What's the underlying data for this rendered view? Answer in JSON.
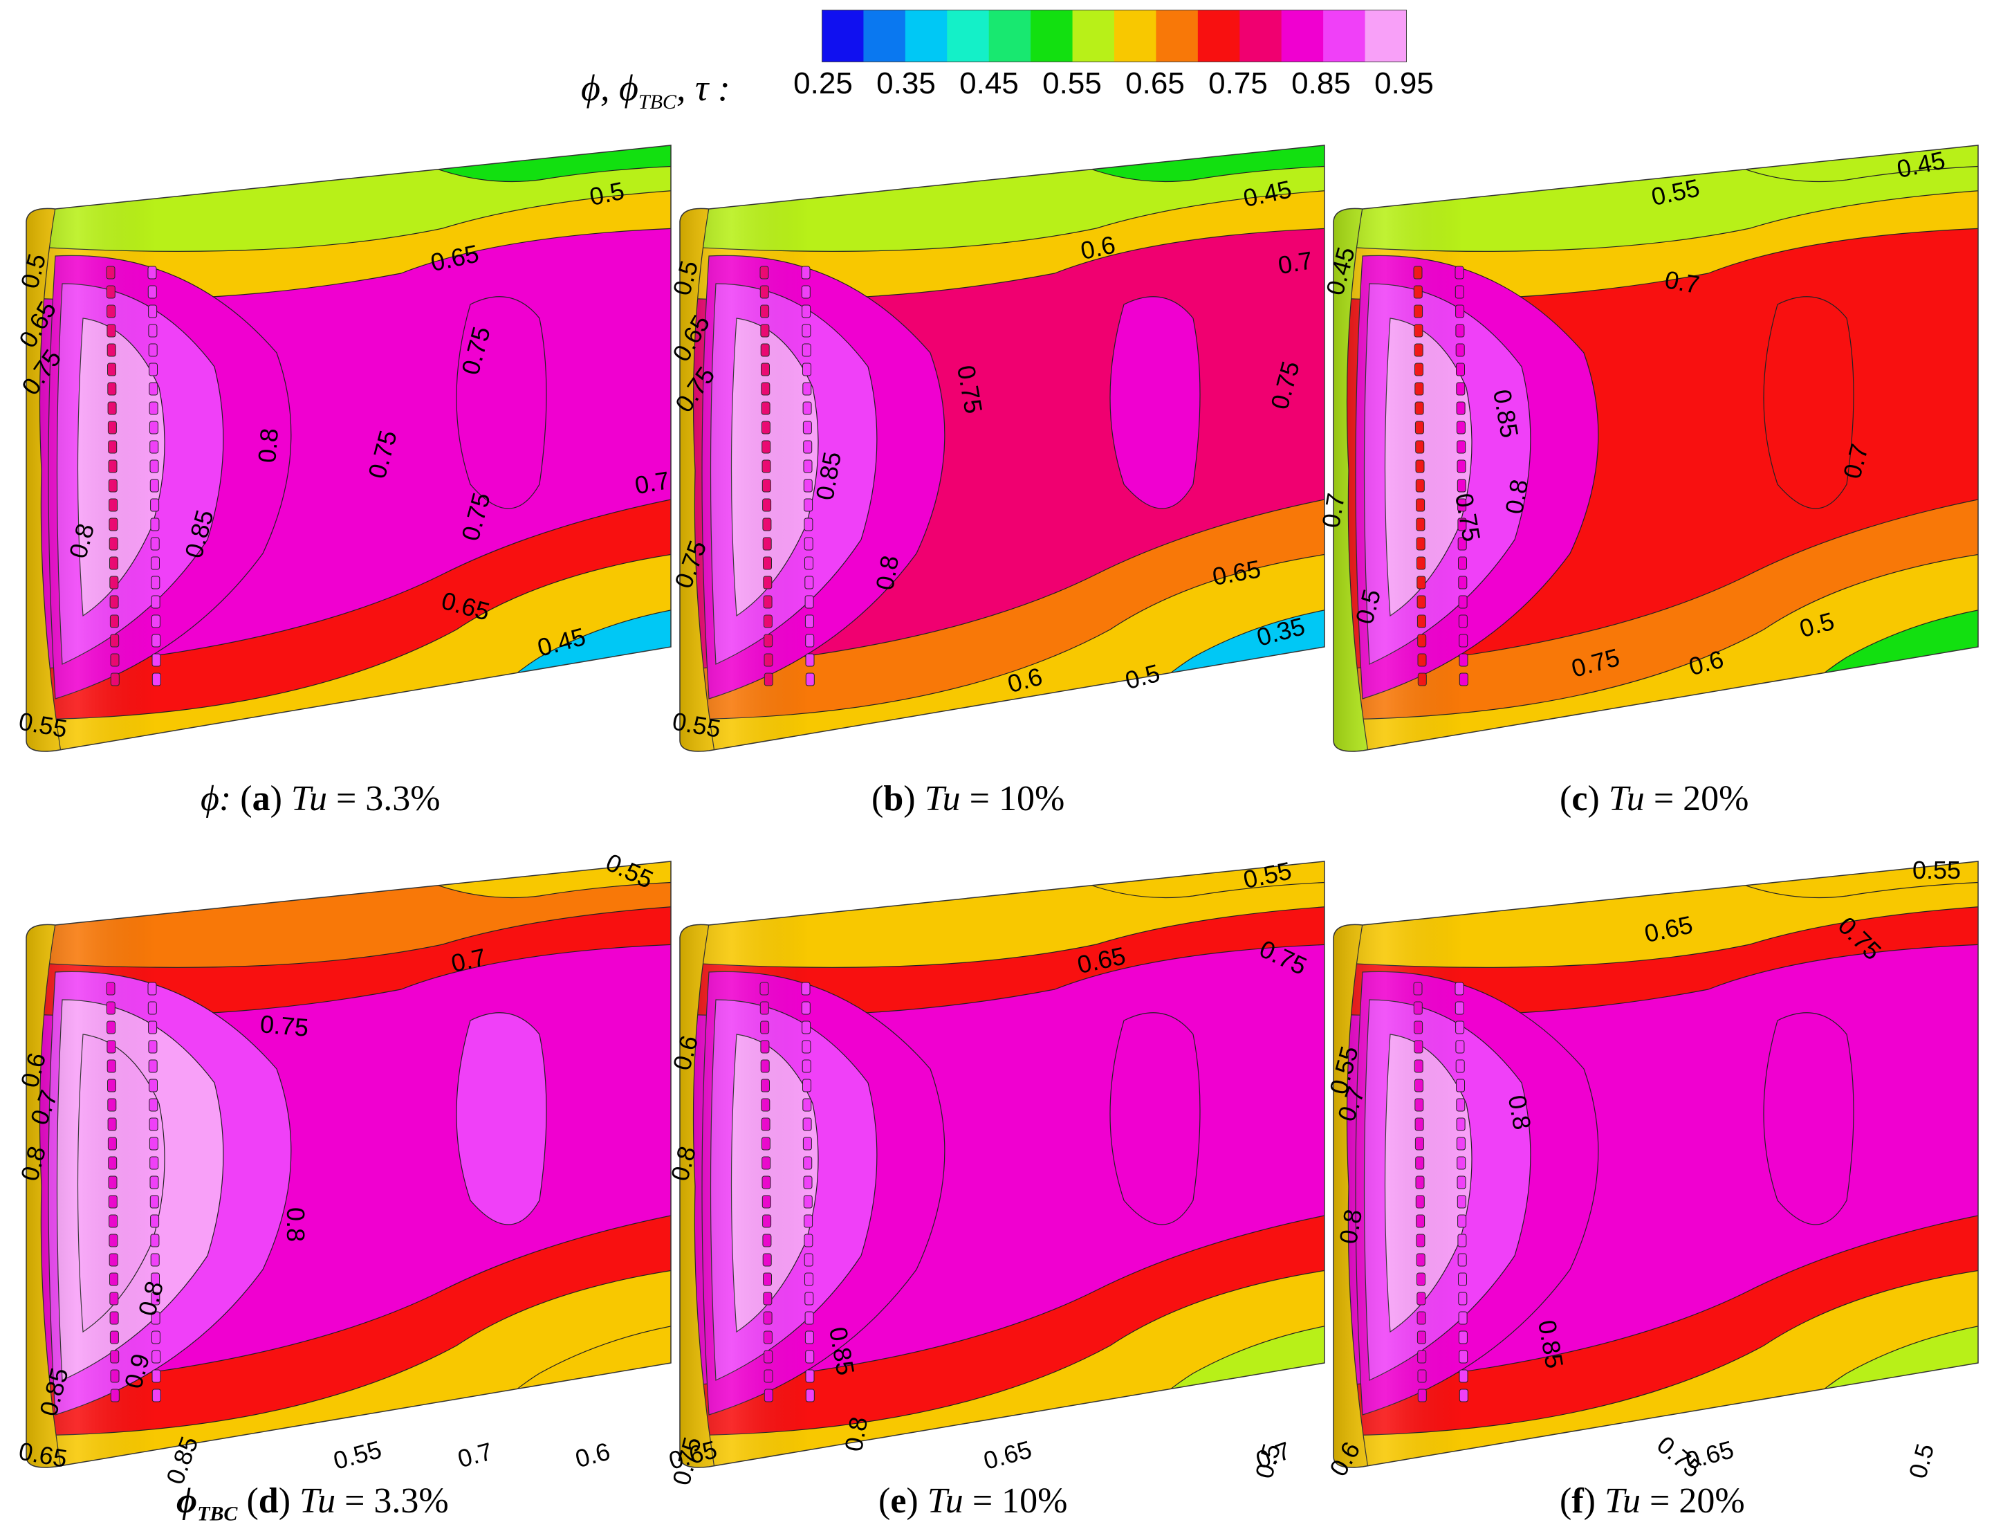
{
  "legend": {
    "variable_label": "ϕ, ϕTBC, τ :",
    "variable_parts": [
      "ϕ",
      ", ϕ",
      "TBC",
      ", τ :"
    ],
    "ticks": [
      "0.25",
      "0.35",
      "0.45",
      "0.55",
      "0.65",
      "0.75",
      "0.85",
      "0.95"
    ],
    "colors": [
      "#1010f0",
      "#0a78f0",
      "#00c8f5",
      "#14f0c8",
      "#18e870",
      "#12e010",
      "#b8f018",
      "#f8c800",
      "#f87808",
      "#f81010",
      "#f00070",
      "#f000d0",
      "#f040f8",
      "#f8a0f8"
    ]
  },
  "chart_data": [
    {
      "type": "contour",
      "panel": "a",
      "variable": "ϕ",
      "caption": {
        "prefix": "ϕ:",
        "letter": "a",
        "label": "Tu",
        "value": "= 3.3%"
      },
      "regions": {
        "leading_edge": 0.55,
        "top_edge": 0.55,
        "bottom_edge": 0.6,
        "tail_top": 0.45,
        "tail_bottom": 0.35,
        "core": 0.75,
        "hole_zone": 0.85,
        "center": 0.9,
        "blob": 0.78
      },
      "contour_labels": [
        "0.5",
        "0.65",
        "0.5",
        "0.65",
        "0.75",
        "0.75",
        "0.8",
        "0.75",
        "0.7",
        "0.8",
        "0.85",
        "0.75",
        "0.65",
        "0.45",
        "0.55"
      ]
    },
    {
      "type": "contour",
      "panel": "b",
      "variable": "ϕ",
      "caption": {
        "prefix": "",
        "letter": "b",
        "label": "Tu",
        "value": "= 10%"
      },
      "regions": {
        "leading_edge": 0.55,
        "top_edge": 0.6,
        "bottom_edge": 0.55,
        "tail_top": 0.45,
        "tail_bottom": 0.35,
        "core": 0.72,
        "hole_zone": 0.82,
        "center": 0.88,
        "blob": 0.77
      },
      "contour_labels": [
        "0.45",
        "0.6",
        "0.7",
        "0.5",
        "0.65",
        "0.75",
        "0.75",
        "0.75",
        "0.85",
        "0.8",
        "0.65",
        "0.75",
        "0.6",
        "0.5",
        "0.35",
        "0.55"
      ]
    },
    {
      "type": "contour",
      "panel": "c",
      "variable": "ϕ",
      "caption": {
        "prefix": "",
        "letter": "c",
        "label": "Tu",
        "value": "= 20%"
      },
      "regions": {
        "leading_edge": 0.5,
        "top_edge": 0.6,
        "bottom_edge": 0.55,
        "tail_top": 0.5,
        "tail_bottom": 0.45,
        "core": 0.7,
        "hole_zone": 0.8,
        "center": 0.86,
        "blob": 0.68
      },
      "contour_labels": [
        "0.45",
        "0.55",
        "0.45",
        "0.7",
        "0.85",
        "0.7",
        "0.7",
        "0.8",
        "0.75",
        "0.75",
        "0.6",
        "0.5",
        "0.5"
      ]
    },
    {
      "type": "contour",
      "panel": "d",
      "variable": "ϕTBC",
      "caption": {
        "prefix": "ϕ",
        "prefix_sub": "TBC",
        "letter": "d",
        "label": "Tu",
        "value": "= 3.3%"
      },
      "regions": {
        "leading_edge": 0.6,
        "top_edge": 0.7,
        "bottom_edge": 0.6,
        "tail_top": 0.55,
        "tail_bottom": 0.55,
        "core": 0.78,
        "hole_zone": 0.86,
        "center": 0.93,
        "blob": 0.82
      },
      "contour_labels": [
        "0.55",
        "0.7",
        "0.75",
        "0.6",
        "0.7",
        "0.8",
        "0.8",
        "0.8",
        "0.9",
        "0.85",
        "0.85",
        "0.7",
        "0.6",
        "0.55",
        "0.65"
      ]
    },
    {
      "type": "contour",
      "panel": "e",
      "variable": "ϕTBC",
      "caption": {
        "prefix": "",
        "letter": "e",
        "label": "Tu",
        "value": "= 10%"
      },
      "regions": {
        "leading_edge": 0.6,
        "top_edge": 0.65,
        "bottom_edge": 0.6,
        "tail_top": 0.55,
        "tail_bottom": 0.5,
        "core": 0.77,
        "hole_zone": 0.85,
        "center": 0.9,
        "blob": 0.78
      },
      "contour_labels": [
        "0.55",
        "0.65",
        "0.75",
        "0.6",
        "0.8",
        "0.85",
        "0.8",
        "0.7",
        "0.75",
        "0.65",
        "0.65",
        "0.5"
      ]
    },
    {
      "type": "contour",
      "panel": "f",
      "variable": "ϕTBC",
      "caption": {
        "prefix": "",
        "letter": "f",
        "label": "Tu",
        "value": "= 20%"
      },
      "regions": {
        "leading_edge": 0.6,
        "top_edge": 0.65,
        "bottom_edge": 0.6,
        "tail_top": 0.55,
        "tail_bottom": 0.5,
        "core": 0.76,
        "hole_zone": 0.84,
        "center": 0.88,
        "blob": 0.77
      },
      "contour_labels": [
        "0.55",
        "0.65",
        "0.75",
        "0.55",
        "0.7",
        "0.8",
        "0.8",
        "0.85",
        "0.75",
        "0.65",
        "0.6",
        "0.5"
      ]
    }
  ]
}
